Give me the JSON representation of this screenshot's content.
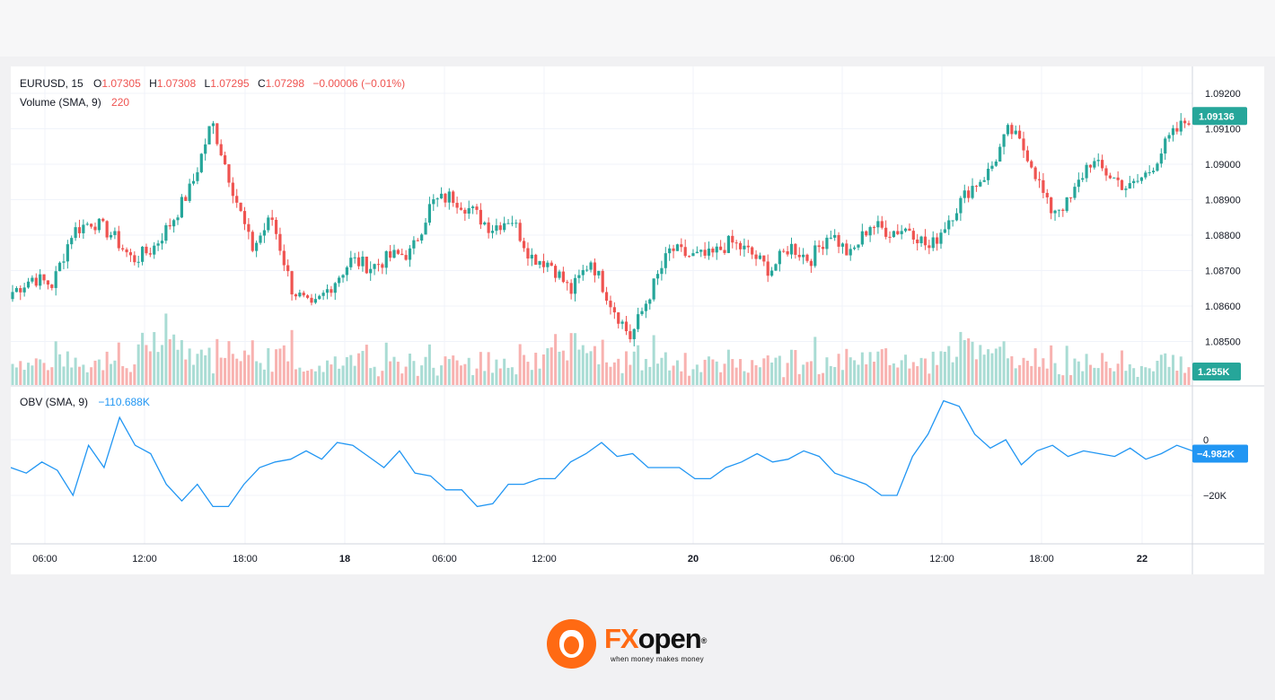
{
  "colors": {
    "up": "#26a69a",
    "down": "#ef5350",
    "up_volume": "#a9dcd4",
    "down_volume": "#f8b2b0",
    "obv_line": "#2196f3",
    "last_price_tag": "#26a69a",
    "last_volume_tag": "#26a69a",
    "obv_tag": "#2196f3",
    "grid": "#f0f3fa",
    "brand": "#ff6a13"
  },
  "legend": {
    "symbol": "EURUSD, 15",
    "o_label": "O",
    "o_value": "1.07305",
    "h_label": "H",
    "h_value": "1.07308",
    "l_label": "L",
    "l_value": "1.07295",
    "c_label": "C",
    "c_value": "1.07298",
    "change": "−0.00006 (−0.01%)",
    "volume_label": "Volume (SMA, 9)",
    "volume_value": "220",
    "obv_label": "OBV (SMA, 9)",
    "obv_value": "−110.688K"
  },
  "price_axis": {
    "ticks": [
      "1.09200",
      "1.09100",
      "1.09000",
      "1.08900",
      "1.08800",
      "1.08700",
      "1.08600",
      "1.08500"
    ],
    "last_price_tag": "1.09136",
    "last_volume_tag": "1.255K"
  },
  "obv_axis": {
    "ticks": [
      "0",
      "−20K"
    ],
    "last_value_tag": "−4.982K"
  },
  "time_axis": {
    "labels": [
      "06:00",
      "12:00",
      "18:00",
      "18",
      "06:00",
      "12:00",
      "20",
      "06:00",
      "12:00",
      "18:00",
      "22"
    ],
    "bold": [
      false,
      false,
      false,
      true,
      false,
      false,
      true,
      false,
      false,
      false,
      true
    ]
  },
  "logo": {
    "fx": "FX",
    "open": "open",
    "registered": "®",
    "tagline": "when money makes money"
  },
  "chart_data": [
    {
      "type": "candlestick",
      "title": "EURUSD, 15",
      "ylim": [
        1.085,
        1.0925
      ],
      "x": [
        "06:00",
        "12:00",
        "18:00",
        "18",
        "06:00",
        "12:00",
        "20",
        "06:00",
        "12:00",
        "18:00",
        "22"
      ],
      "close_path": [
        1.0864,
        1.0868,
        1.0866,
        1.0881,
        1.0884,
        1.088,
        1.0873,
        1.0876,
        1.0884,
        1.0894,
        1.0912,
        1.0894,
        1.0876,
        1.0885,
        1.0865,
        1.0859,
        1.0866,
        1.0873,
        1.0871,
        1.0874,
        1.0875,
        1.0889,
        1.0891,
        1.0887,
        1.0882,
        1.0885,
        1.0874,
        1.0872,
        1.0864,
        1.0873,
        1.0861,
        1.0851,
        1.0864,
        1.0876,
        1.0874,
        1.0874,
        1.0878,
        1.0875,
        1.087,
        1.0877,
        1.0873,
        1.0881,
        1.0874,
        1.0883,
        1.0881,
        1.0882,
        1.0876,
        1.0885,
        1.0893,
        1.0898,
        1.091,
        1.0902,
        1.0887,
        1.0889,
        1.0901,
        1.0897,
        1.0893,
        1.0898,
        1.0907,
        1.0913
      ]
    },
    {
      "type": "bar",
      "title": "Volume (SMA, 9)",
      "last_value": "1.255K"
    },
    {
      "type": "line",
      "title": "OBV (SMA, 9)",
      "ylim": [
        -35000,
        18000
      ],
      "points": [
        -10,
        -12,
        -8,
        -11,
        -20,
        -2,
        -10,
        8,
        -2,
        -5,
        -16,
        -22,
        -16,
        -24,
        -24,
        -16,
        -10,
        -8,
        -7,
        -4,
        -7,
        -1,
        -2,
        -6,
        -10,
        -4,
        -12,
        -13,
        -18,
        -18,
        -24,
        -23,
        -16,
        -16,
        -14,
        -14,
        -8,
        -5,
        -1,
        -6,
        -5,
        -10,
        -10,
        -10,
        -14,
        -14,
        -10,
        -8,
        -5,
        -8,
        -7,
        -4,
        -6,
        -12,
        -14,
        -16,
        -20,
        -20,
        -6,
        2,
        14,
        12,
        2,
        -3,
        0,
        -9,
        -4,
        -2,
        -6,
        -4,
        -5,
        -6,
        -3,
        -7,
        -5,
        -2,
        -4
      ]
    }
  ]
}
